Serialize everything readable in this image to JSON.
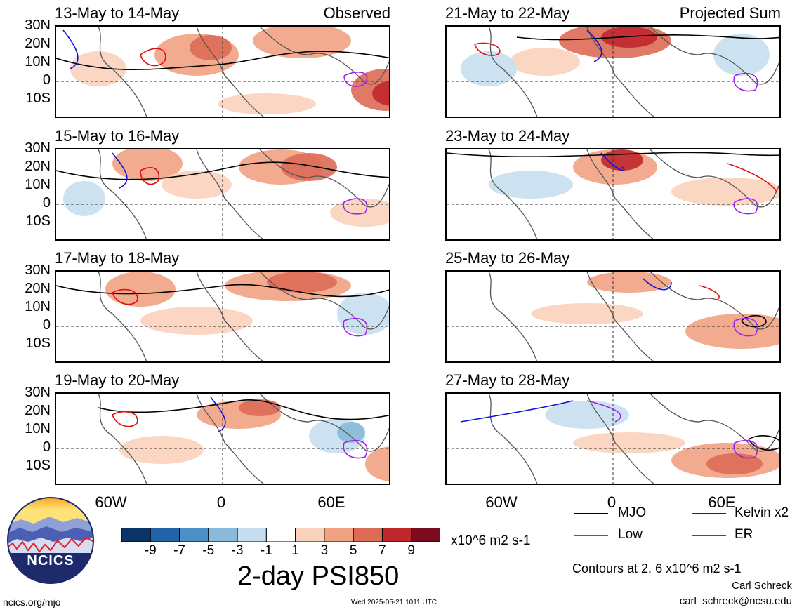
{
  "corner_labels": {
    "observed": "Observed",
    "projected": "Projected Sum"
  },
  "lat_ticks": [
    "30N",
    "20N",
    "10N",
    "0",
    "10S"
  ],
  "lon_ticks": [
    "60W",
    "0",
    "60E"
  ],
  "panels": [
    {
      "title": "13-May to 14-May",
      "group": "Observed"
    },
    {
      "title": "15-May to 16-May",
      "group": "Observed"
    },
    {
      "title": "17-May to 18-May",
      "group": "Observed"
    },
    {
      "title": "19-May to 20-May",
      "group": "Observed"
    },
    {
      "title": "21-May to 22-May",
      "group": "Projected Sum"
    },
    {
      "title": "23-May to 24-May",
      "group": "Projected Sum"
    },
    {
      "title": "25-May to 26-May",
      "group": "Projected Sum"
    },
    {
      "title": "27-May to 28-May",
      "group": "Projected Sum"
    }
  ],
  "colorbar": {
    "tick_labels": [
      "-9",
      "-7",
      "-5",
      "-3",
      "-1",
      "1",
      "3",
      "5",
      "7",
      "9"
    ],
    "colors": [
      "#0a3468",
      "#2163a8",
      "#4a8fc6",
      "#88bad9",
      "#c6dff0",
      "#ffffff",
      "#f9d2bc",
      "#f1a283",
      "#dd6c57",
      "#c0272d",
      "#7d0b1e"
    ],
    "units": "x10^6 m2 s-1"
  },
  "title": "2-day PSI850",
  "legend": [
    {
      "label": "MJO",
      "color": "#000000"
    },
    {
      "label": "Kelvin x2",
      "color": "#1010e0"
    },
    {
      "label": "Low",
      "color": "#a020f0"
    },
    {
      "label": "ER",
      "color": "#e01010"
    }
  ],
  "contour_note": "Contours at 2, 6 x10^6 m2 s-1",
  "author": "Carl Schreck",
  "email": "carl_schreck@ncsu.edu",
  "site": "ncics.org/mjo",
  "timestamp": "Wed 2025-05-21 1011 UTC",
  "logo_text": "NCICS"
}
